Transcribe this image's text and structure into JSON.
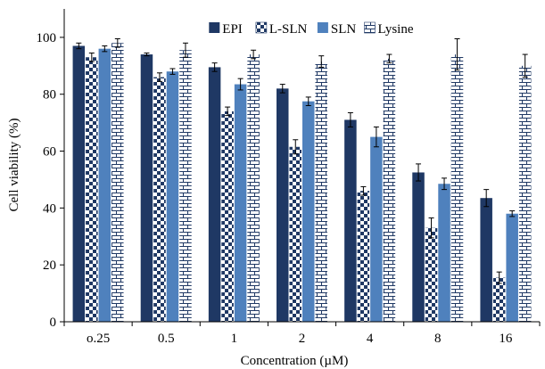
{
  "chart_data": {
    "type": "bar",
    "title": "",
    "xlabel": "Concentration (µM)",
    "ylabel": "Cell viability (%)",
    "ylim": [
      0,
      110
    ],
    "yticks": [
      0,
      20,
      40,
      60,
      80,
      100
    ],
    "categories": [
      "o.25",
      "0.5",
      "1",
      "2",
      "4",
      "8",
      "16"
    ],
    "grid": false,
    "legend_position": "top",
    "series": [
      {
        "name": "EPI",
        "pattern": "solid",
        "color": "#1f3864",
        "values": [
          97,
          94,
          89.5,
          82,
          71,
          52.5,
          43.5
        ],
        "errors": [
          1,
          0.5,
          1.5,
          1.5,
          2.5,
          3,
          3
        ]
      },
      {
        "name": "L-SLN",
        "pattern": "checker",
        "color": "#1f3864",
        "values": [
          93,
          86,
          74,
          61.5,
          46,
          33,
          15.5
        ],
        "errors": [
          1.5,
          1.5,
          1.5,
          2.5,
          1.5,
          3.5,
          2
        ]
      },
      {
        "name": "SLN",
        "pattern": "solid",
        "color": "#4f81bd",
        "values": [
          96,
          88,
          83.5,
          77.5,
          65,
          48.5,
          38
        ],
        "errors": [
          1,
          1,
          2,
          1.5,
          3.5,
          2,
          1
        ]
      },
      {
        "name": "Lysine",
        "pattern": "brick",
        "color": "#1f3864",
        "values": [
          98,
          95.5,
          94,
          91.5,
          92.5,
          94,
          90
        ],
        "errors": [
          1.5,
          2.5,
          1.5,
          2,
          1.5,
          5.5,
          4
        ]
      }
    ]
  }
}
